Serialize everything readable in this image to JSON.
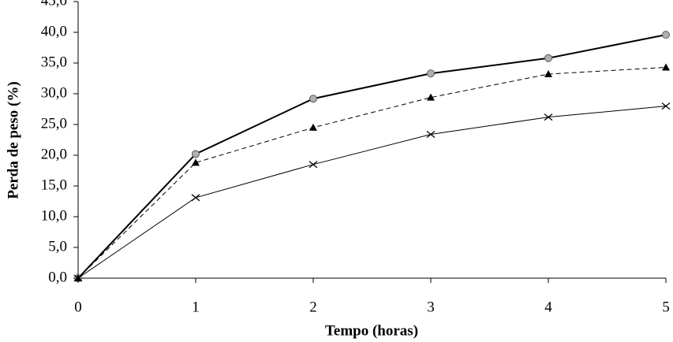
{
  "chart_data": {
    "type": "line",
    "x_label": "Tempo (horas)",
    "y_label": "Perda de peso  (%)",
    "x": [
      0,
      1,
      2,
      3,
      4,
      5
    ],
    "xlim": [
      0,
      5
    ],
    "xticks": [
      0,
      1,
      2,
      3,
      4,
      5
    ],
    "ylim": [
      0,
      45
    ],
    "yticks": [
      {
        "value": 0,
        "label": "0,0"
      },
      {
        "value": 5,
        "label": "5,0"
      },
      {
        "value": 10,
        "label": "10,0"
      },
      {
        "value": 15,
        "label": "15,0"
      },
      {
        "value": 20,
        "label": "20,0"
      },
      {
        "value": 25,
        "label": "25,0"
      },
      {
        "value": 30,
        "label": "30,0"
      },
      {
        "value": 35,
        "label": "35,0"
      },
      {
        "value": 40,
        "label": "40,0"
      },
      {
        "value": 45,
        "label": "45,0"
      }
    ],
    "grid": false,
    "series": [
      {
        "color": "#000000",
        "marker": "circle",
        "line_style": "solid",
        "line_width": 2,
        "values": [
          0,
          20.2,
          29.2,
          33.3,
          35.8,
          39.6
        ]
      },
      {
        "color": "#000000",
        "marker": "triangle",
        "line_style": "dashed",
        "line_width": 1,
        "values": [
          0,
          18.8,
          24.5,
          29.4,
          33.2,
          34.3
        ]
      },
      {
        "color": "#000000",
        "marker": "x",
        "line_style": "solid",
        "line_width": 1,
        "values": [
          0,
          13.1,
          18.5,
          23.4,
          26.2,
          28.0
        ]
      }
    ]
  }
}
